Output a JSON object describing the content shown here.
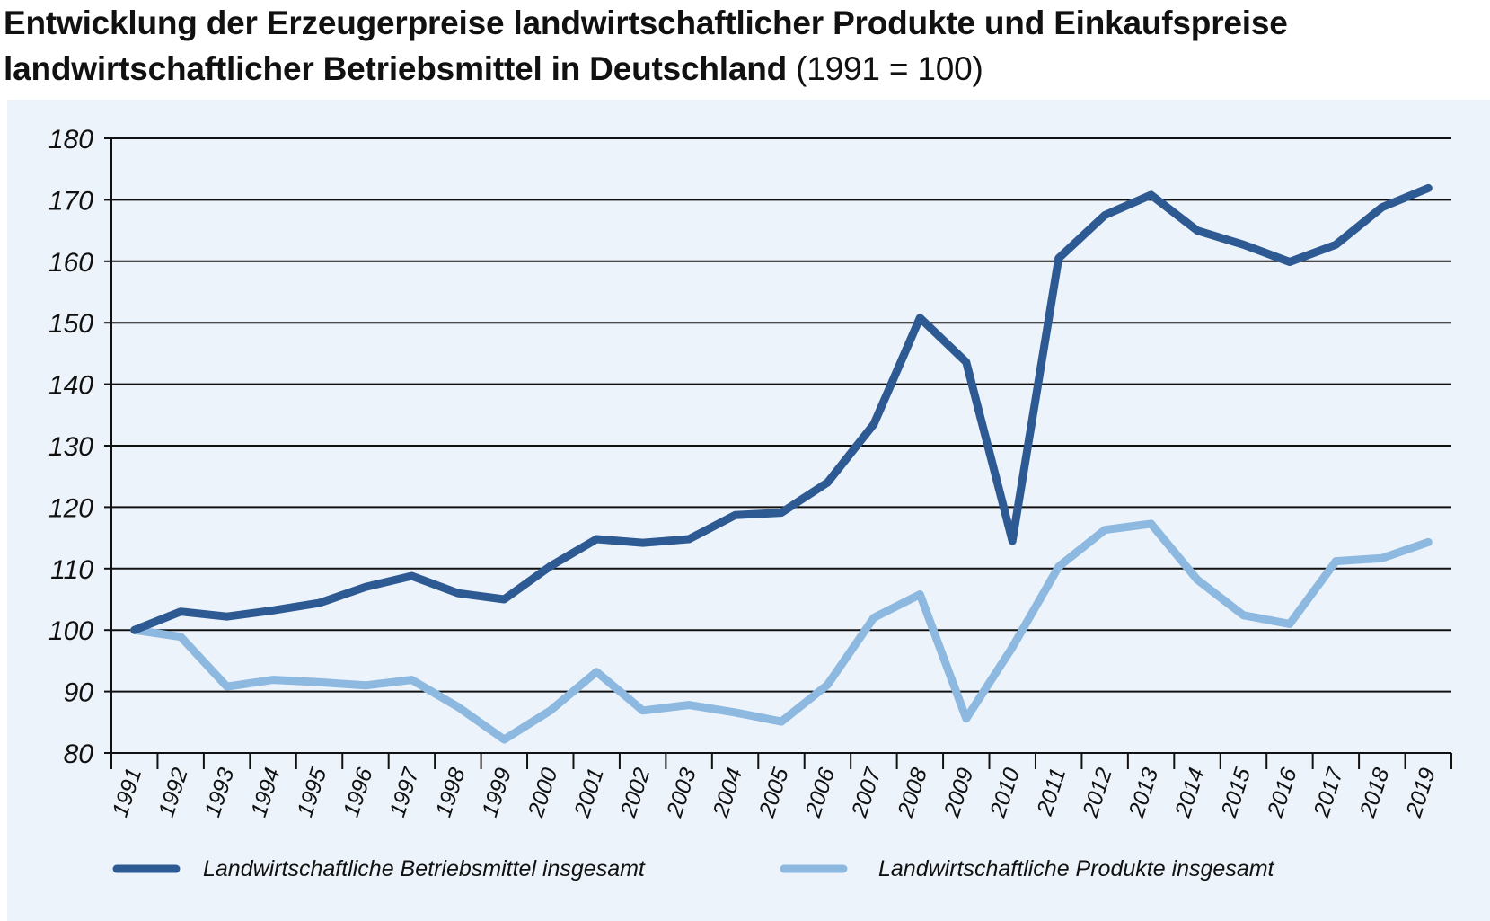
{
  "title": {
    "line1": "Entwicklung der Erzeugerpreise landwirtschaftlicher Produkte und Einkaufspreise",
    "line2": "landwirtschaftlicher Betriebsmittel in Deutschland",
    "suffix": "(1991 = 100)"
  },
  "chart_data": {
    "type": "line",
    "x": [
      "1991",
      "1992",
      "1993",
      "1994",
      "1995",
      "1996",
      "1997",
      "1998",
      "1999",
      "2000",
      "2001",
      "2002",
      "2003",
      "2004",
      "2005",
      "2006",
      "2007",
      "2008",
      "2009",
      "2010",
      "2011",
      "2012",
      "2013",
      "2014",
      "2015",
      "2016",
      "2017",
      "2018",
      "2019"
    ],
    "ylim": [
      80,
      180
    ],
    "yticks": [
      80,
      90,
      100,
      110,
      120,
      130,
      140,
      150,
      160,
      170,
      180
    ],
    "grid": true,
    "legend_position": "bottom",
    "series": [
      {
        "name": "Landwirtschaftliche Betriebsmittel insgesamt",
        "color": "#2e5a94",
        "values": [
          100,
          103,
          102.2,
          103.2,
          104.4,
          107,
          108.8,
          106,
          105,
          110.4,
          114.8,
          114.2,
          114.8,
          118.7,
          119.1,
          124,
          133.5,
          150.8,
          143.6,
          114.5,
          160.5,
          167.5,
          170.8,
          165,
          162.7,
          159.9,
          162.7,
          168.8,
          171.9
        ]
      },
      {
        "name": "Landwirtschaftliche Produkte insgesamt",
        "color": "#8db8e0",
        "values": [
          100,
          98.9,
          90.8,
          91.9,
          91.5,
          91,
          91.9,
          87.5,
          82.2,
          86.9,
          93.2,
          86.9,
          87.8,
          86.6,
          85.1,
          91.1,
          102,
          105.8,
          85.6,
          97.2,
          110.3,
          116.3,
          117.3,
          108.2,
          102.4,
          101,
          111.2,
          111.7,
          114.3
        ]
      }
    ]
  }
}
